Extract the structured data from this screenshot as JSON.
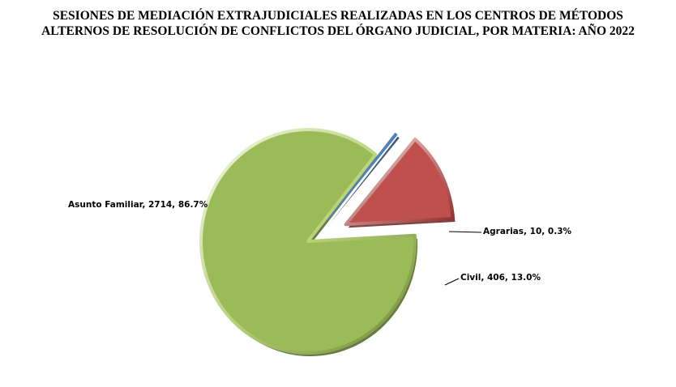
{
  "chart_data": {
    "type": "pie",
    "title_lines": [
      "SESIONES DE MEDIACIÓN EXTRAJUDICIALES  REALIZADAS  EN LOS CENTROS DE MÉTODOS",
      "ALTERNOS DE RESOLUCIÓN DE CONFLICTOS  DEL ÓRGANO JUDICIAL, POR MATERIA: AÑO 2022"
    ],
    "slices": [
      {
        "name": "Asunto Familiar",
        "value": 2714,
        "percent": "86.7%",
        "color": "#9BBB59",
        "label": "Asunto Familiar,  2714, 86.7%"
      },
      {
        "name": "Agrarias",
        "value": 10,
        "percent": "0.3%",
        "color": "#4F81BD",
        "label": "Agrarias,  10, 0.3%"
      },
      {
        "name": "Civil",
        "value": 406,
        "percent": "13.0%",
        "color": "#C0504D",
        "label": "Civil,  406, 13.0%"
      }
    ],
    "legend": "none",
    "style": "3d-exploded"
  }
}
